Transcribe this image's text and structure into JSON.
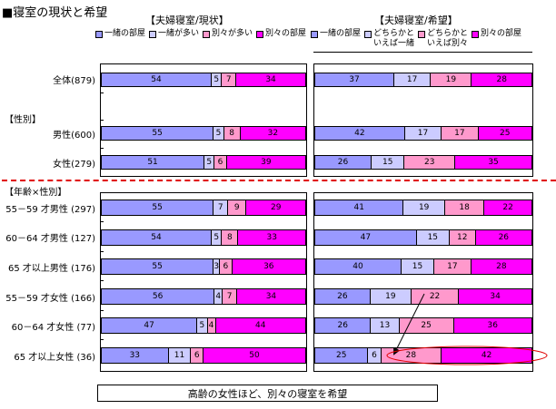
{
  "title": "■寝室の現状と希望",
  "panels": {
    "current": {
      "title": "【夫婦寝室/現状】",
      "legend": [
        {
          "label": "一緒の部屋",
          "color": "#9999ff"
        },
        {
          "label": "一緒が多い",
          "color": "#ccccff"
        },
        {
          "label": "別々が多い",
          "color": "#ff99cc"
        },
        {
          "label": "別々の部屋",
          "color": "#ff00ff"
        }
      ]
    },
    "desired": {
      "title": "【夫婦寝室/希望】",
      "legend": [
        {
          "label": "一緒の部屋",
          "color": "#9999ff"
        },
        {
          "label": "どちらかと\nいえば一緒",
          "color": "#ccccff"
        },
        {
          "label": "どちらかと\nいえば別々",
          "color": "#ff99cc"
        },
        {
          "label": "別々の部屋",
          "color": "#ff00ff"
        }
      ]
    }
  },
  "sections": {
    "gender": "【性別】",
    "age_gender": "【年齢×性別】"
  },
  "rows": [
    {
      "label": "全体(879)",
      "current": [
        54,
        5,
        7,
        34
      ],
      "desired": [
        37,
        17,
        19,
        28
      ]
    },
    {
      "label": "男性(600)",
      "current": [
        55,
        5,
        8,
        32
      ],
      "desired": [
        42,
        17,
        17,
        25
      ]
    },
    {
      "label": "女性(279)",
      "current": [
        51,
        5,
        6,
        39
      ],
      "desired": [
        26,
        15,
        23,
        35
      ]
    },
    {
      "label": "55－59 才男性 (297)",
      "current": [
        55,
        7,
        9,
        29
      ],
      "desired": [
        41,
        19,
        18,
        22
      ]
    },
    {
      "label": "60－64 才男性 (127)",
      "current": [
        54,
        5,
        8,
        33
      ],
      "desired": [
        47,
        15,
        12,
        26
      ]
    },
    {
      "label": "65 才以上男性 (176)",
      "current": [
        55,
        3,
        6,
        36
      ],
      "desired": [
        40,
        15,
        17,
        28
      ]
    },
    {
      "label": "55－59 才女性 (166)",
      "current": [
        56,
        4,
        7,
        34
      ],
      "desired": [
        26,
        19,
        22,
        34
      ]
    },
    {
      "label": "60－64 才女性 (77)",
      "current": [
        47,
        5,
        4,
        44
      ],
      "desired": [
        26,
        13,
        25,
        36
      ]
    },
    {
      "label": "65 才以上女性 (36)",
      "current": [
        33,
        11,
        6,
        50
      ],
      "desired": [
        25,
        6,
        28,
        42
      ]
    }
  ],
  "callout": "高齢の女性ほど、別々の寝室を希望",
  "colors": {
    "c1": "#9999ff",
    "c2": "#ccccff",
    "c3": "#ff99cc",
    "c4": "#ff00ff",
    "divider": "#e00000",
    "highlight": "#e00000"
  },
  "chart_data": [
    {
      "type": "bar",
      "orientation": "horizontal-stacked-100",
      "title": "【夫婦寝室/現状】",
      "categories": [
        "全体(879)",
        "男性(600)",
        "女性(279)",
        "55－59 才男性 (297)",
        "60－64 才男性 (127)",
        "65 才以上男性 (176)",
        "55－59 才女性 (166)",
        "60－64 才女性 (77)",
        "65 才以上女性 (36)"
      ],
      "series": [
        {
          "name": "一緒の部屋",
          "values": [
            54,
            55,
            51,
            55,
            54,
            55,
            56,
            47,
            33
          ]
        },
        {
          "name": "一緒が多い",
          "values": [
            5,
            5,
            5,
            7,
            5,
            3,
            4,
            5,
            11
          ]
        },
        {
          "name": "別々が多い",
          "values": [
            7,
            8,
            6,
            9,
            8,
            6,
            7,
            4,
            6
          ]
        },
        {
          "name": "別々の部屋",
          "values": [
            34,
            32,
            39,
            29,
            33,
            36,
            34,
            44,
            50
          ]
        }
      ],
      "xlabel": "",
      "ylabel": "",
      "xlim": [
        0,
        100
      ],
      "unit": "%",
      "legend_position": "top"
    },
    {
      "type": "bar",
      "orientation": "horizontal-stacked-100",
      "title": "【夫婦寝室/希望】",
      "categories": [
        "全体(879)",
        "男性(600)",
        "女性(279)",
        "55－59 才男性 (297)",
        "60－64 才男性 (127)",
        "65 才以上男性 (176)",
        "55－59 才女性 (166)",
        "60－64 才女性 (77)",
        "65 才以上女性 (36)"
      ],
      "series": [
        {
          "name": "一緒の部屋",
          "values": [
            37,
            42,
            26,
            41,
            47,
            40,
            26,
            26,
            25
          ]
        },
        {
          "name": "どちらかといえば一緒",
          "values": [
            17,
            17,
            15,
            19,
            15,
            15,
            19,
            13,
            6
          ]
        },
        {
          "name": "どちらかといえば別々",
          "values": [
            19,
            17,
            23,
            18,
            12,
            17,
            22,
            25,
            28
          ]
        },
        {
          "name": "別々の部屋",
          "values": [
            28,
            25,
            35,
            22,
            26,
            28,
            34,
            36,
            42
          ]
        }
      ],
      "xlabel": "",
      "ylabel": "",
      "xlim": [
        0,
        100
      ],
      "unit": "%",
      "legend_position": "top",
      "annotations": [
        "Arrow from 55－59 才女性 'どちらかといえば別々' to 65 才以上女性; red ellipse around 65 才以上女性 別々 segments",
        "高齢の女性ほど、別々の寝室を希望"
      ]
    }
  ]
}
